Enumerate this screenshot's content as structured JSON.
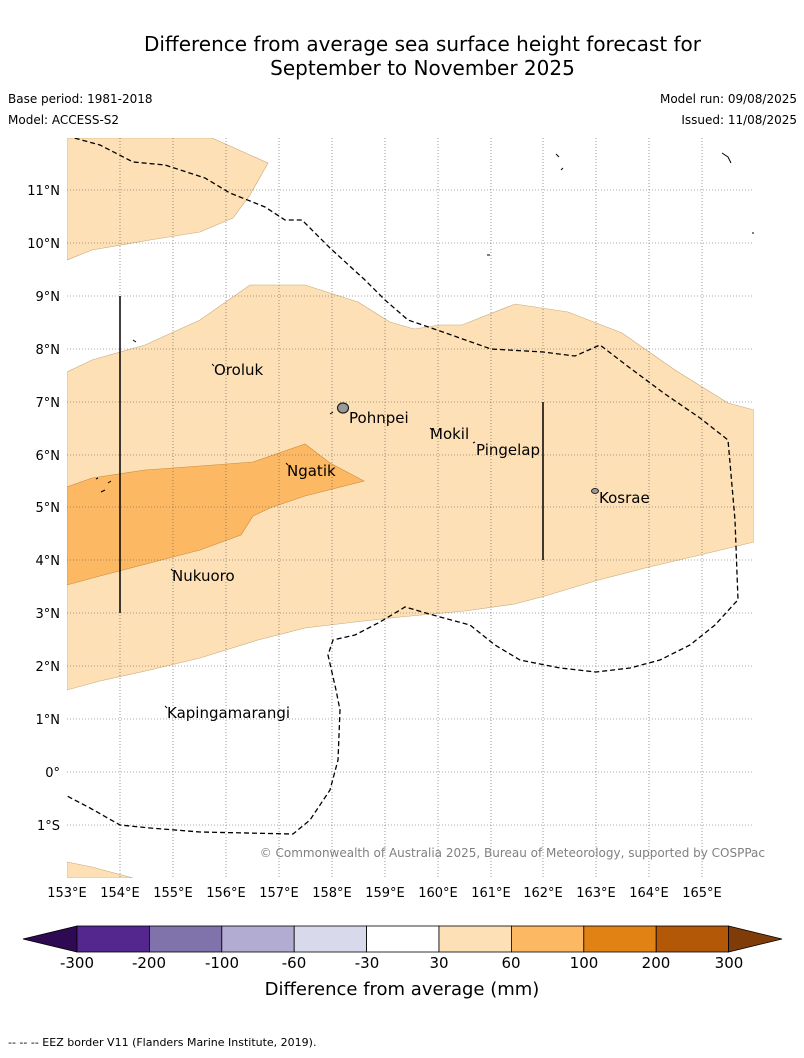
{
  "title_line1": "Difference from average sea surface height forecast for",
  "title_line2": "September to November 2025",
  "base_period": "Base period: 1981-2018",
  "model": "Model: ACCESS-S2",
  "model_run": "Model run: 09/08/2025",
  "issued": "Issued: 11/08/2025",
  "copyright": "© Commonwealth of Australia 2025, Bureau of Meteorology, supported by COSPPac",
  "lon_labels": [
    "153°E",
    "154°E",
    "155°E",
    "156°E",
    "157°E",
    "158°E",
    "159°E",
    "160°E",
    "161°E",
    "162°E",
    "163°E",
    "164°E",
    "165°E"
  ],
  "lat_labels": [
    "11°N",
    "10°N",
    "9°N",
    "8°N",
    "7°N",
    "6°N",
    "5°N",
    "4°N",
    "3°N",
    "2°N",
    "1°N",
    "0°",
    "1°S"
  ],
  "places": {
    "oroluk": "Oroluk",
    "pohnpei": "Pohnpei",
    "mokil": "Mokil",
    "pingelap": "Pingelap",
    "ngatik": "Ngatik",
    "kosrae": "Kosrae",
    "nukuoro": "Nukuoro",
    "kapingamarangi": "Kapingamarangi"
  },
  "colorbar": {
    "ticks": [
      "-300",
      "-200",
      "-100",
      "-60",
      "-30",
      "30",
      "60",
      "100",
      "200",
      "300"
    ],
    "colors": [
      "#2d0a52",
      "#54278f",
      "#8073ac",
      "#b2abd2",
      "#d8daeb",
      "#ffffff",
      "#fee0b6",
      "#fdb863",
      "#e08214",
      "#b35806",
      "#7f3b08"
    ],
    "label": "Difference from average (mm)"
  },
  "footer": "--  --  -- EEZ border V11 (Flanders Marine Institute, 2019)."
}
